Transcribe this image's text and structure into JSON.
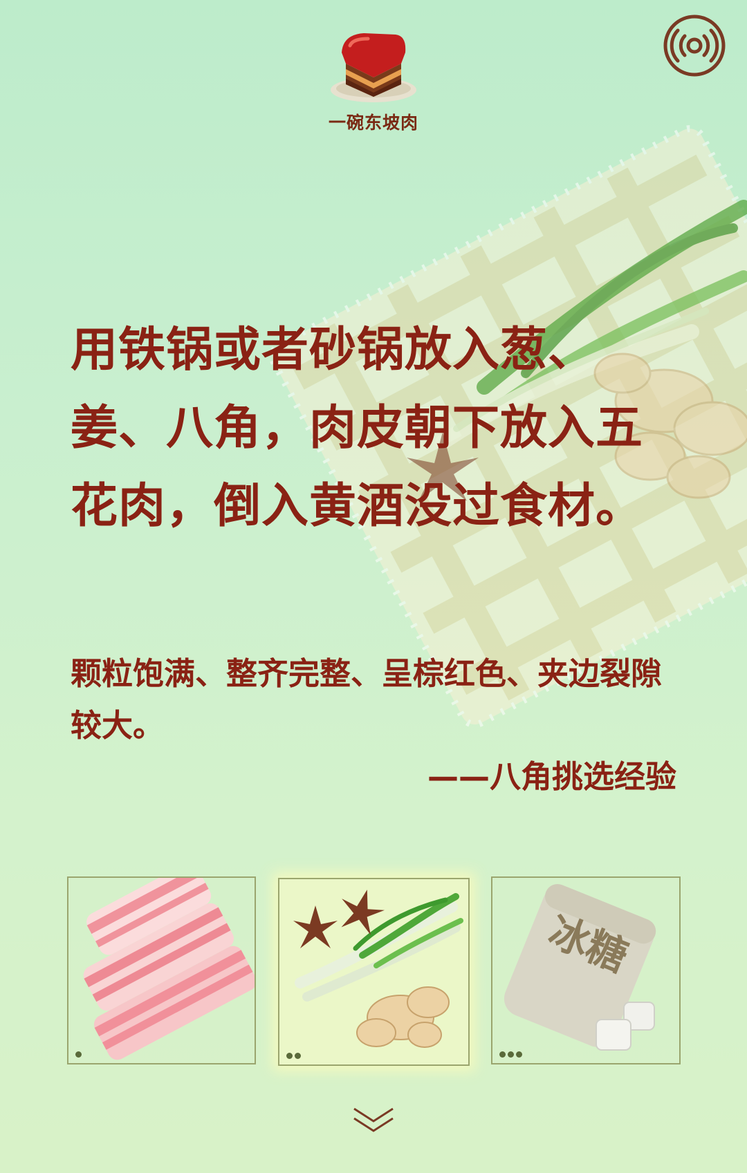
{
  "app": {
    "title": "一碗东坡肉"
  },
  "step": {
    "instruction": "用铁锅或者砂锅放入葱、姜、八角，肉皮朝下放入五花肉，倒入黄酒没过食材。",
    "tip": "颗粒饱满、整齐完整、呈棕红色、夹边裂隙较大。",
    "tip_source": "——八角挑选经验"
  },
  "ingredients": [
    {
      "name": "pork-belly",
      "dots": 1,
      "active": false
    },
    {
      "name": "star-anise-scallion-ginger",
      "dots": 2,
      "active": true
    },
    {
      "name": "rock-sugar",
      "label": "冰糖",
      "dots": 3,
      "active": false
    }
  ],
  "icons": {
    "music": "music-broadcast-icon",
    "next": "chevron-double-down-icon",
    "logo": "dongpo-pork-bowl-icon"
  },
  "colors": {
    "text_primary": "#8a2214",
    "card_border": "#9aa56e",
    "bg_top": "#bdeccb",
    "bg_bottom": "#d8f2c8"
  }
}
